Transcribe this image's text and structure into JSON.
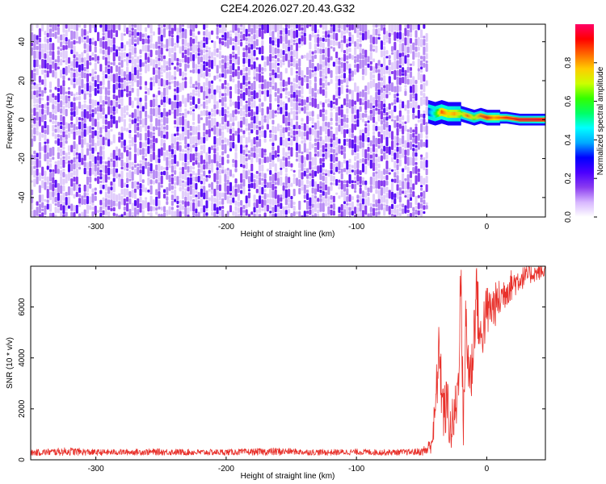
{
  "title": "C2E4.2026.027.20.43.G32",
  "chart_data": [
    {
      "type": "heatmap",
      "title": "C2E4.2026.027.20.43.G32",
      "xlabel": "Height of straight line (km)",
      "ylabel": "Frequency (Hz)",
      "xlim": [
        -350,
        45
      ],
      "ylim": [
        -50,
        49
      ],
      "xticks": [
        -300,
        -200,
        -100,
        0
      ],
      "yticks": [
        -40,
        -20,
        0,
        20,
        40
      ],
      "colorbar": {
        "label": "Normalized spectral amplitude",
        "range": [
          0,
          1
        ],
        "ticks": [
          "0.0",
          "0.2",
          "0.4",
          "0.6",
          "0.8"
        ],
        "tick_values": [
          0.0,
          0.2,
          0.4,
          0.6,
          0.8
        ],
        "colormap": [
          "#ffffff",
          "#d7b6ff",
          "#8a3cf0",
          "#4b00ff",
          "#0000ff",
          "#00aaff",
          "#00ffff",
          "#00ff66",
          "#33ff00",
          "#ccff00",
          "#ffcc00",
          "#ff6600",
          "#ff0000",
          "#ff0066"
        ]
      },
      "noise_region": {
        "x_range": [
          -350,
          -45
        ],
        "freq_range": [
          -50,
          49
        ],
        "amplitude_range": [
          0.0,
          0.15
        ]
      },
      "signal_band": [
        {
          "x": -45,
          "freq": 4,
          "amplitude": 0.35
        },
        {
          "x": -40,
          "freq": 3,
          "amplitude": 0.55
        },
        {
          "x": -35,
          "freq": 4,
          "amplitude": 0.85
        },
        {
          "x": -30,
          "freq": 3,
          "amplitude": 0.75
        },
        {
          "x": -25,
          "freq": 3,
          "amplitude": 0.8
        },
        {
          "x": -20,
          "freq": 3,
          "amplitude": 0.7
        },
        {
          "x": -15,
          "freq": 2,
          "amplitude": 0.85
        },
        {
          "x": -10,
          "freq": 1,
          "amplitude": 0.7
        },
        {
          "x": -5,
          "freq": 2,
          "amplitude": 0.85
        },
        {
          "x": 0,
          "freq": 1,
          "amplitude": 0.9
        },
        {
          "x": 5,
          "freq": 1,
          "amplitude": 0.8
        },
        {
          "x": 10,
          "freq": 1,
          "amplitude": 0.85
        },
        {
          "x": 15,
          "freq": 1,
          "amplitude": 0.9
        },
        {
          "x": 20,
          "freq": 0.5,
          "amplitude": 0.9
        },
        {
          "x": 25,
          "freq": 0,
          "amplitude": 0.95
        },
        {
          "x": 30,
          "freq": 0,
          "amplitude": 0.95
        },
        {
          "x": 35,
          "freq": 0,
          "amplitude": 0.95
        },
        {
          "x": 40,
          "freq": 0,
          "amplitude": 0.95
        },
        {
          "x": 45,
          "freq": 0,
          "amplitude": 0.95
        }
      ]
    },
    {
      "type": "line",
      "title": "",
      "xlabel": "Height of straight line (km)",
      "ylabel": "SNR (10 * v/v)",
      "xlim": [
        -350,
        45
      ],
      "ylim": [
        0,
        7600
      ],
      "xticks": [
        -300,
        -200,
        -100,
        0
      ],
      "yticks": [
        0,
        2000,
        4000,
        6000
      ],
      "series": [
        {
          "name": "SNR",
          "color": "#e8302a",
          "x": [
            -350,
            -320,
            -300,
            -280,
            -250,
            -220,
            -200,
            -180,
            -160,
            -150,
            -140,
            -120,
            -100,
            -80,
            -60,
            -50,
            -45,
            -42,
            -40,
            -38,
            -36,
            -35,
            -33,
            -30,
            -28,
            -25,
            -22,
            -20,
            -18,
            -16,
            -15,
            -12,
            -10,
            -8,
            -5,
            -3,
            0,
            5,
            10,
            15,
            20,
            25,
            30,
            35,
            40,
            45
          ],
          "values": [
            280,
            330,
            290,
            300,
            310,
            290,
            300,
            310,
            320,
            330,
            300,
            290,
            310,
            290,
            300,
            320,
            420,
            800,
            1500,
            3200,
            4500,
            3000,
            1800,
            2200,
            1100,
            1600,
            2800,
            7300,
            1500,
            5500,
            4200,
            3200,
            4800,
            6800,
            4500,
            5200,
            5800,
            6000,
            6300,
            6700,
            6900,
            7100,
            7200,
            7300,
            7350,
            7400
          ],
          "noise_amplitude": [
            120,
            160,
            120,
            120,
            130,
            120,
            120,
            130,
            160,
            120,
            120,
            120,
            120,
            120,
            120,
            150,
            300,
            500,
            900,
            1200,
            1400,
            1400,
            1100,
            1200,
            1000,
            1100,
            1300,
            1500,
            1200,
            1500,
            1400,
            1300,
            1400,
            1400,
            1200,
            1200,
            1100,
            900,
            800,
            700,
            600,
            500,
            400,
            350,
            300,
            300
          ]
        }
      ]
    }
  ]
}
